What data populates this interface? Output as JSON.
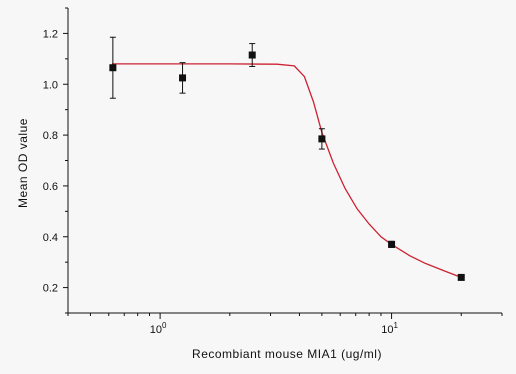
{
  "chart_data": {
    "type": "scatter",
    "title": "",
    "xlabel": "Recombiant mouse MIA1 (ug/ml)",
    "ylabel": "Mean OD value",
    "x_scale": "log",
    "xlim": [
      0.4,
      30
    ],
    "ylim": [
      0.1,
      1.3
    ],
    "x_ticks": [
      {
        "value": 1,
        "label": "10",
        "exp": "0"
      },
      {
        "value": 10,
        "label": "10",
        "exp": "1"
      }
    ],
    "y_ticks": [
      {
        "value": 0.2,
        "label": "0.2"
      },
      {
        "value": 0.4,
        "label": "0.4"
      },
      {
        "value": 0.6,
        "label": "0.6"
      },
      {
        "value": 0.8,
        "label": "0.8"
      },
      {
        "value": 1.0,
        "label": "1.0"
      },
      {
        "value": 1.2,
        "label": "1.2"
      }
    ],
    "grid": false,
    "legend": "none",
    "series": [
      {
        "points": [
          {
            "x": 0.625,
            "y": 1.065,
            "err": 0.12
          },
          {
            "x": 1.25,
            "y": 1.025,
            "err": 0.06
          },
          {
            "x": 2.5,
            "y": 1.115,
            "err": 0.045
          },
          {
            "x": 5,
            "y": 0.785,
            "err": 0.04
          },
          {
            "x": 10,
            "y": 0.37,
            "err": 0.012
          },
          {
            "x": 20,
            "y": 0.24,
            "err": 0.008
          }
        ],
        "color": "#111111"
      }
    ],
    "fit_curve": {
      "color": "#cc2233",
      "points": [
        {
          "x": 0.62,
          "y": 1.08
        },
        {
          "x": 1,
          "y": 1.08
        },
        {
          "x": 2,
          "y": 1.08
        },
        {
          "x": 3.2,
          "y": 1.079
        },
        {
          "x": 3.8,
          "y": 1.072
        },
        {
          "x": 4.2,
          "y": 1.03
        },
        {
          "x": 4.6,
          "y": 0.93
        },
        {
          "x": 5,
          "y": 0.81
        },
        {
          "x": 5.6,
          "y": 0.69
        },
        {
          "x": 6.3,
          "y": 0.59
        },
        {
          "x": 7.1,
          "y": 0.51
        },
        {
          "x": 8,
          "y": 0.45
        },
        {
          "x": 9,
          "y": 0.4
        },
        {
          "x": 10,
          "y": 0.37
        },
        {
          "x": 12,
          "y": 0.325
        },
        {
          "x": 14,
          "y": 0.295
        },
        {
          "x": 17,
          "y": 0.265
        },
        {
          "x": 20,
          "y": 0.24
        }
      ]
    }
  }
}
